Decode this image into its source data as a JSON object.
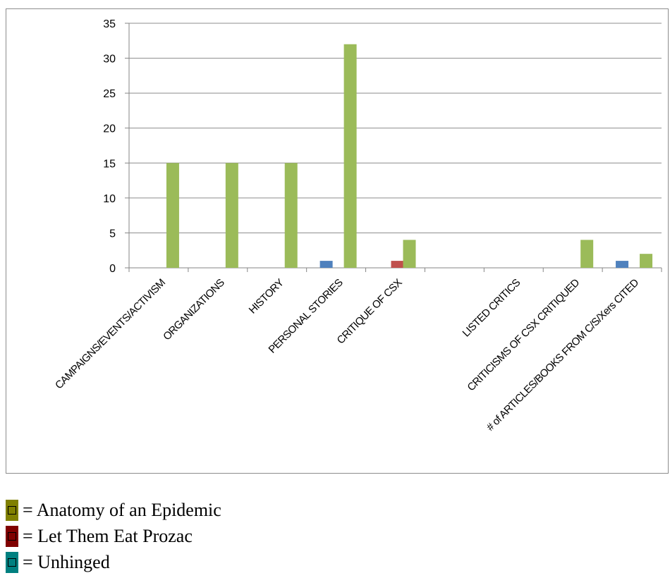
{
  "chart_data": {
    "type": "bar",
    "categories": [
      "CAMPAIGNS/EVENTS/ACTIVISM",
      "ORGANIZATIONS",
      "HISTORY",
      "PERSONAL STORIES",
      "CRITIQUE OF CSX",
      "",
      "LISTED CRITICS",
      "CRITICISMS OF CSX CRITIQUED",
      "# of ARTICLES/BOOKS FROM C/S/Xers CITED"
    ],
    "series": [
      {
        "color": "#4f81bd",
        "values": [
          0,
          0,
          0,
          1,
          0,
          0,
          0,
          0,
          1
        ]
      },
      {
        "color": "#c0504d",
        "values": [
          0,
          0,
          0,
          0,
          1,
          0,
          0,
          0,
          0
        ]
      },
      {
        "color": "#9bbb59",
        "values": [
          15,
          15,
          15,
          32,
          4,
          0,
          0,
          4,
          2
        ]
      }
    ],
    "ylim": [
      0,
      35
    ],
    "yticks": [
      0,
      5,
      10,
      15,
      20,
      25,
      30,
      35
    ],
    "grid": true,
    "title": "",
    "xlabel": "",
    "ylabel": ""
  },
  "legend": {
    "items": [
      {
        "label": "= Anatomy of an Epidemic",
        "color": "#808000"
      },
      {
        "label": "= Let Them Eat Prozac",
        "color": "#800000"
      },
      {
        "label": "= Unhinged",
        "color": "#008080"
      }
    ]
  }
}
